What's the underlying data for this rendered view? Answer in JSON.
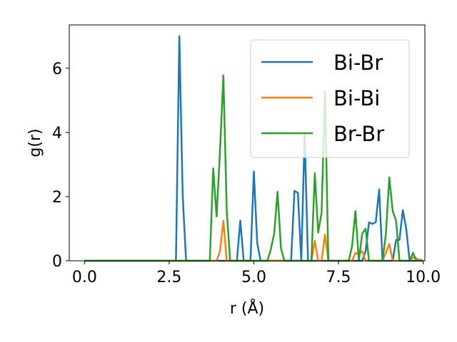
{
  "chart_data": {
    "type": "line",
    "xlabel": "r (Å)",
    "ylabel": "g(r)",
    "xlim": [
      -0.45,
      10.05
    ],
    "ylim": [
      0,
      7.35
    ],
    "x_ticks": [
      0.0,
      2.5,
      5.0,
      7.5,
      10.0
    ],
    "x_tick_labels": [
      "0.0",
      "2.5",
      "5.0",
      "7.5",
      "10.0"
    ],
    "y_ticks": [
      0,
      2,
      4,
      6
    ],
    "y_tick_labels": [
      "0",
      "2",
      "4",
      "6"
    ],
    "grid": false,
    "legend_position": "upper-right",
    "series": [
      {
        "name": "Bi-Br",
        "color": "#1f77b4",
        "points": [
          [
            0,
            0
          ],
          [
            2.7,
            0
          ],
          [
            2.8,
            7.0
          ],
          [
            2.9,
            2.0
          ],
          [
            3.0,
            0
          ],
          [
            4.5,
            0
          ],
          [
            4.6,
            1.25
          ],
          [
            4.7,
            0
          ],
          [
            4.9,
            0
          ],
          [
            5.0,
            2.78
          ],
          [
            5.1,
            0.55
          ],
          [
            5.2,
            0
          ],
          [
            6.1,
            0
          ],
          [
            6.2,
            2.18
          ],
          [
            6.3,
            2.12
          ],
          [
            6.4,
            0
          ],
          [
            6.5,
            3.95
          ],
          [
            6.6,
            0
          ],
          [
            8.2,
            0
          ],
          [
            8.3,
            0.3
          ],
          [
            8.4,
            1.2
          ],
          [
            8.5,
            1.15
          ],
          [
            8.6,
            1.2
          ],
          [
            8.7,
            2.22
          ],
          [
            8.8,
            0
          ],
          [
            9.1,
            0
          ],
          [
            9.2,
            0.65
          ],
          [
            9.3,
            0.65
          ],
          [
            9.4,
            1.58
          ],
          [
            9.5,
            1.0
          ],
          [
            9.6,
            0
          ],
          [
            10.0,
            0
          ]
        ]
      },
      {
        "name": "Bi-Bi",
        "color": "#ff7f0e",
        "points": [
          [
            0,
            0
          ],
          [
            3.9,
            0
          ],
          [
            4.0,
            0.3
          ],
          [
            4.1,
            1.25
          ],
          [
            4.2,
            0
          ],
          [
            6.7,
            0
          ],
          [
            6.8,
            0.62
          ],
          [
            6.9,
            0
          ],
          [
            7.0,
            0
          ],
          [
            7.1,
            0.82
          ],
          [
            7.2,
            0
          ],
          [
            7.9,
            0
          ],
          [
            8.0,
            0.25
          ],
          [
            8.1,
            0.2
          ],
          [
            8.2,
            0.3
          ],
          [
            8.3,
            0
          ],
          [
            8.8,
            0
          ],
          [
            8.9,
            0.25
          ],
          [
            9.0,
            0.52
          ],
          [
            9.1,
            0
          ],
          [
            9.6,
            0
          ],
          [
            9.7,
            0.1
          ],
          [
            10.0,
            0
          ]
        ]
      },
      {
        "name": "Br-Br",
        "color": "#2ca02c",
        "points": [
          [
            0,
            0
          ],
          [
            3.7,
            0
          ],
          [
            3.8,
            2.88
          ],
          [
            3.9,
            1.38
          ],
          [
            4.0,
            3.4
          ],
          [
            4.1,
            5.78
          ],
          [
            4.2,
            1.55
          ],
          [
            4.3,
            0
          ],
          [
            5.4,
            0
          ],
          [
            5.5,
            0.35
          ],
          [
            5.6,
            0.85
          ],
          [
            5.7,
            2.15
          ],
          [
            5.8,
            0.4
          ],
          [
            5.9,
            0
          ],
          [
            6.7,
            0
          ],
          [
            6.8,
            2.73
          ],
          [
            6.9,
            0.88
          ],
          [
            7.0,
            1.5
          ],
          [
            7.1,
            5.28
          ],
          [
            7.2,
            0
          ],
          [
            7.8,
            0
          ],
          [
            7.9,
            0.45
          ],
          [
            8.0,
            1.55
          ],
          [
            8.1,
            0
          ],
          [
            8.2,
            0.85
          ],
          [
            8.3,
            1.0
          ],
          [
            8.4,
            0
          ],
          [
            8.8,
            0
          ],
          [
            8.9,
            0.85
          ],
          [
            9.0,
            2.6
          ],
          [
            9.1,
            1.55
          ],
          [
            9.2,
            1.25
          ],
          [
            9.3,
            0
          ],
          [
            9.6,
            0
          ],
          [
            9.7,
            0.25
          ],
          [
            9.8,
            0
          ],
          [
            10.0,
            0
          ]
        ]
      }
    ]
  }
}
